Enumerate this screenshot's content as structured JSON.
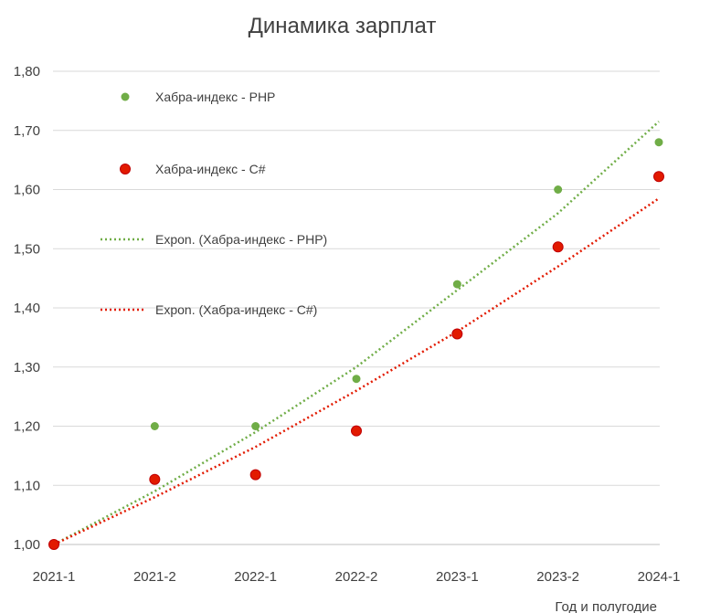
{
  "chart_data": {
    "type": "scatter",
    "title": "Динамика зарплат",
    "xlabel": "Год и полугодие",
    "ylabel": "",
    "categories": [
      "2021-1",
      "2021-2",
      "2022-1",
      "2022-2",
      "2023-1",
      "2023-2",
      "2024-1"
    ],
    "y_ticks": [
      "1,00",
      "1,10",
      "1,20",
      "1,30",
      "1,40",
      "1,50",
      "1,60",
      "1,70",
      "1,80"
    ],
    "ylim": [
      1.0,
      1.8
    ],
    "grid": true,
    "legend_position": "top-left inside plot",
    "series": [
      {
        "name": "Хабра-индекс - PHP",
        "color": "#70AD47",
        "marker_size": "small",
        "values": [
          1.0,
          1.2,
          1.2,
          1.28,
          1.44,
          1.6,
          1.68
        ]
      },
      {
        "name": "Хабра-индекс - C#",
        "color": "#C00000",
        "marker_fill": "#E21A00",
        "marker_size": "large",
        "values": [
          1.0,
          1.11,
          1.118,
          1.192,
          1.356,
          1.503,
          1.622
        ]
      }
    ],
    "trendlines": [
      {
        "name": "Expon. (Хабра-индекс - PHP)",
        "type": "exponential",
        "color": "#70AD47",
        "values": [
          1.0,
          1.09,
          1.19,
          1.3,
          1.43,
          1.56,
          1.715
        ]
      },
      {
        "name": "Expon. (Хабра-индекс - C#)",
        "type": "exponential",
        "color": "#E21A00",
        "values": [
          1.0,
          1.08,
          1.165,
          1.26,
          1.36,
          1.47,
          1.585
        ]
      }
    ]
  }
}
